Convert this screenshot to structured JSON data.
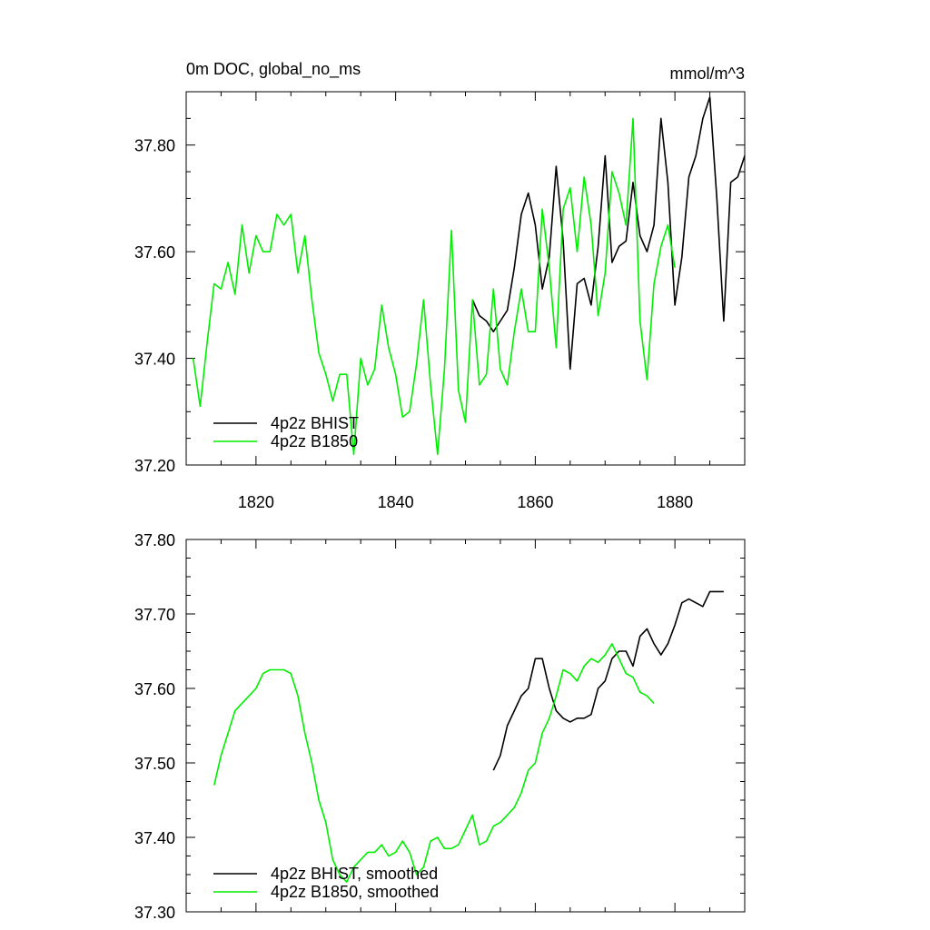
{
  "chart_data": [
    {
      "type": "line",
      "title_left": "0m DOC, global_no_ms",
      "title_right": "mmol/m^3",
      "xlim": [
        1810,
        1890
      ],
      "ylim": [
        37.2,
        37.9
      ],
      "xticks": [
        1820,
        1840,
        1860,
        1880
      ],
      "xtick_labels": [
        "1820",
        "1840",
        "1860",
        "1880"
      ],
      "yticks": [
        37.2,
        37.4,
        37.6,
        37.8
      ],
      "ytick_labels": [
        "37.20",
        "37.40",
        "37.60",
        "37.80"
      ],
      "grid": false,
      "legend_position": "bottom-left",
      "series": [
        {
          "name": "4p2z BHIST",
          "color": "#000000",
          "x": [
            1851,
            1852,
            1853,
            1854,
            1855,
            1856,
            1857,
            1858,
            1859,
            1860,
            1861,
            1862,
            1863,
            1864,
            1865,
            1866,
            1867,
            1868,
            1869,
            1870,
            1871,
            1872,
            1873,
            1874,
            1875,
            1876,
            1877,
            1878,
            1879,
            1880,
            1881,
            1882,
            1883,
            1884,
            1885,
            1886,
            1887,
            1888,
            1889,
            1890
          ],
          "values": [
            37.51,
            37.48,
            37.47,
            37.45,
            37.47,
            37.49,
            37.57,
            37.67,
            37.71,
            37.65,
            37.53,
            37.59,
            37.76,
            37.62,
            37.38,
            37.54,
            37.55,
            37.5,
            37.61,
            37.78,
            37.58,
            37.61,
            37.62,
            37.73,
            37.63,
            37.6,
            37.65,
            37.85,
            37.73,
            37.5,
            37.59,
            37.74,
            37.78,
            37.85,
            37.89,
            37.7,
            37.47,
            37.73,
            37.74,
            37.78
          ]
        },
        {
          "name": "4p2z B1850",
          "color": "#00ee00",
          "x": [
            1811,
            1812,
            1813,
            1814,
            1815,
            1816,
            1817,
            1818,
            1819,
            1820,
            1821,
            1822,
            1823,
            1824,
            1825,
            1826,
            1827,
            1828,
            1829,
            1830,
            1831,
            1832,
            1833,
            1834,
            1835,
            1836,
            1837,
            1838,
            1839,
            1840,
            1841,
            1842,
            1843,
            1844,
            1845,
            1846,
            1847,
            1848,
            1849,
            1850,
            1851,
            1852,
            1853,
            1854,
            1855,
            1856,
            1857,
            1858,
            1859,
            1860,
            1861,
            1862,
            1863,
            1864,
            1865,
            1866,
            1867,
            1868,
            1869,
            1870,
            1871,
            1872,
            1873,
            1874,
            1875,
            1876,
            1877,
            1878,
            1879,
            1880
          ],
          "values": [
            37.4,
            37.31,
            37.43,
            37.54,
            37.53,
            37.58,
            37.52,
            37.65,
            37.56,
            37.63,
            37.6,
            37.6,
            37.67,
            37.65,
            37.67,
            37.56,
            37.63,
            37.51,
            37.41,
            37.37,
            37.32,
            37.37,
            37.37,
            37.22,
            37.4,
            37.35,
            37.38,
            37.5,
            37.42,
            37.37,
            37.29,
            37.3,
            37.39,
            37.51,
            37.35,
            37.22,
            37.38,
            37.64,
            37.34,
            37.28,
            37.51,
            37.35,
            37.37,
            37.53,
            37.38,
            37.35,
            37.45,
            37.53,
            37.45,
            37.45,
            37.68,
            37.57,
            37.42,
            37.68,
            37.72,
            37.6,
            37.74,
            37.65,
            37.48,
            37.56,
            37.75,
            37.71,
            37.65,
            37.85,
            37.47,
            37.36,
            37.54,
            37.61,
            37.65,
            37.57
          ]
        }
      ]
    },
    {
      "type": "line",
      "xlim": [
        1810,
        1890
      ],
      "ylim": [
        37.3,
        37.8
      ],
      "xticks": [
        1820,
        1840,
        1860,
        1880
      ],
      "yticks": [
        37.3,
        37.4,
        37.5,
        37.6,
        37.7,
        37.8
      ],
      "ytick_labels": [
        "37.30",
        "37.40",
        "37.50",
        "37.60",
        "37.70",
        "37.80"
      ],
      "grid": false,
      "legend_position": "bottom-left",
      "series": [
        {
          "name": "4p2z BHIST, smoothed",
          "color": "#000000",
          "x": [
            1854,
            1855,
            1856,
            1857,
            1858,
            1859,
            1860,
            1861,
            1862,
            1863,
            1864,
            1865,
            1866,
            1867,
            1868,
            1869,
            1870,
            1871,
            1872,
            1873,
            1874,
            1875,
            1876,
            1877,
            1878,
            1879,
            1880,
            1881,
            1882,
            1883,
            1884,
            1885,
            1886,
            1887
          ],
          "values": [
            37.49,
            37.51,
            37.55,
            37.57,
            37.59,
            37.6,
            37.64,
            37.64,
            37.6,
            37.57,
            37.56,
            37.555,
            37.56,
            37.56,
            37.565,
            37.6,
            37.61,
            37.64,
            37.65,
            37.65,
            37.63,
            37.67,
            37.68,
            37.66,
            37.645,
            37.66,
            37.685,
            37.715,
            37.72,
            37.715,
            37.71,
            37.73,
            37.73,
            37.73
          ]
        },
        {
          "name": "4p2z B1850, smoothed",
          "color": "#00ee00",
          "x": [
            1814,
            1815,
            1816,
            1817,
            1818,
            1819,
            1820,
            1821,
            1822,
            1823,
            1824,
            1825,
            1826,
            1827,
            1828,
            1829,
            1830,
            1831,
            1832,
            1833,
            1834,
            1835,
            1836,
            1837,
            1838,
            1839,
            1840,
            1841,
            1842,
            1843,
            1844,
            1845,
            1846,
            1847,
            1848,
            1849,
            1850,
            1851,
            1852,
            1853,
            1854,
            1855,
            1856,
            1857,
            1858,
            1859,
            1860,
            1861,
            1862,
            1863,
            1864,
            1865,
            1866,
            1867,
            1868,
            1869,
            1870,
            1871,
            1872,
            1873,
            1874,
            1875,
            1876,
            1877
          ],
          "values": [
            37.47,
            37.51,
            37.54,
            37.57,
            37.58,
            37.59,
            37.6,
            37.62,
            37.625,
            37.625,
            37.625,
            37.62,
            37.59,
            37.54,
            37.5,
            37.45,
            37.42,
            37.37,
            37.35,
            37.34,
            37.36,
            37.37,
            37.38,
            37.38,
            37.39,
            37.375,
            37.38,
            37.395,
            37.38,
            37.35,
            37.36,
            37.395,
            37.4,
            37.385,
            37.385,
            37.39,
            37.41,
            37.43,
            37.39,
            37.395,
            37.415,
            37.42,
            37.43,
            37.44,
            37.46,
            37.49,
            37.5,
            37.54,
            37.56,
            37.59,
            37.625,
            37.62,
            37.61,
            37.63,
            37.64,
            37.635,
            37.645,
            37.66,
            37.64,
            37.62,
            37.615,
            37.595,
            37.59,
            37.58
          ]
        }
      ]
    }
  ]
}
